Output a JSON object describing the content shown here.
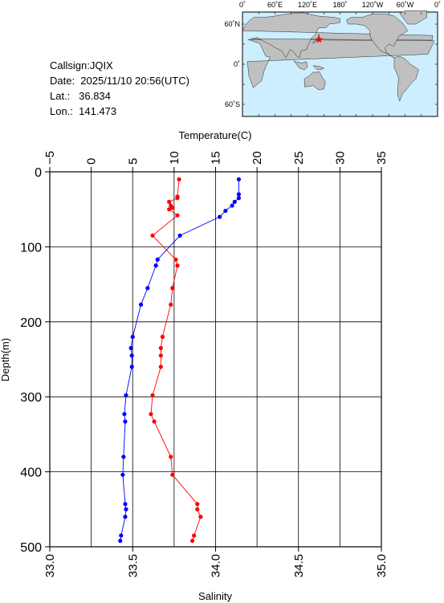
{
  "station": {
    "callsign": "Callsign:JQIX",
    "date": "Date:  2025/11/10 20:56(UTC)",
    "lat": "Lat.:   36.834",
    "lon": "Lon.:  141.473"
  },
  "map": {
    "top_labels": [
      "0˚",
      "60˚E",
      "120˚E",
      "180˚",
      "120˚W",
      "60˚W",
      "0˚"
    ],
    "lat_labels": [
      "60˚N",
      "0˚",
      "60˚S"
    ],
    "ocean_color": "#cceeff",
    "land_color": "#c0c0c0",
    "marker_color": "#ff0000",
    "marker": {
      "lon": 141.473,
      "lat": 36.834
    }
  },
  "chart_data": {
    "type": "line",
    "xlabel_top": "Temperature(C)",
    "xlabel_bottom": "Salinity",
    "ylabel": "Depth(m)",
    "temperature_ticks": [
      "−5",
      "0",
      "5",
      "10",
      "15",
      "20",
      "25",
      "30",
      "35"
    ],
    "salinity_ticks": [
      "33.0",
      "33.5",
      "34.0",
      "34.5",
      "35.0"
    ],
    "depth_ticks": [
      "0",
      "100",
      "200",
      "300",
      "400",
      "500"
    ],
    "temperature_range": [
      -5,
      35
    ],
    "salinity_range": [
      33.0,
      35.0
    ],
    "depth_range": [
      0,
      500
    ],
    "grid": true,
    "series": [
      {
        "color": "#ff0000",
        "axis": "salinity",
        "points": [
          [
            33.78,
            10
          ],
          [
            33.77,
            33
          ],
          [
            33.77,
            35
          ],
          [
            33.72,
            40
          ],
          [
            33.73,
            45
          ],
          [
            33.74,
            48
          ],
          [
            33.72,
            50
          ],
          [
            33.77,
            58
          ],
          [
            33.62,
            85
          ],
          [
            33.76,
            117
          ],
          [
            33.77,
            125
          ],
          [
            33.74,
            155
          ],
          [
            33.73,
            177
          ],
          [
            33.68,
            220
          ],
          [
            33.67,
            235
          ],
          [
            33.67,
            245
          ],
          [
            33.67,
            260
          ],
          [
            33.62,
            298
          ],
          [
            33.61,
            323
          ],
          [
            33.63,
            333
          ],
          [
            33.73,
            380
          ],
          [
            33.74,
            404
          ],
          [
            33.89,
            443
          ],
          [
            33.89,
            450
          ],
          [
            33.91,
            460
          ],
          [
            33.87,
            485
          ],
          [
            33.86,
            492
          ]
        ]
      },
      {
        "color": "#0000ff",
        "axis": "temperature",
        "points": [
          [
            17.8,
            10
          ],
          [
            17.8,
            30
          ],
          [
            17.8,
            35
          ],
          [
            17.3,
            40
          ],
          [
            17.0,
            45
          ],
          [
            16.2,
            52
          ],
          [
            15.5,
            60
          ],
          [
            10.7,
            85
          ],
          [
            8.0,
            117
          ],
          [
            7.8,
            125
          ],
          [
            6.8,
            155
          ],
          [
            6.0,
            177
          ],
          [
            5.0,
            220
          ],
          [
            4.8,
            235
          ],
          [
            4.9,
            245
          ],
          [
            4.9,
            260
          ],
          [
            4.2,
            298
          ],
          [
            4.0,
            323
          ],
          [
            4.1,
            333
          ],
          [
            3.9,
            380
          ],
          [
            3.8,
            404
          ],
          [
            4.1,
            443
          ],
          [
            4.2,
            450
          ],
          [
            4.1,
            460
          ],
          [
            3.6,
            485
          ],
          [
            3.5,
            492
          ]
        ]
      }
    ]
  }
}
